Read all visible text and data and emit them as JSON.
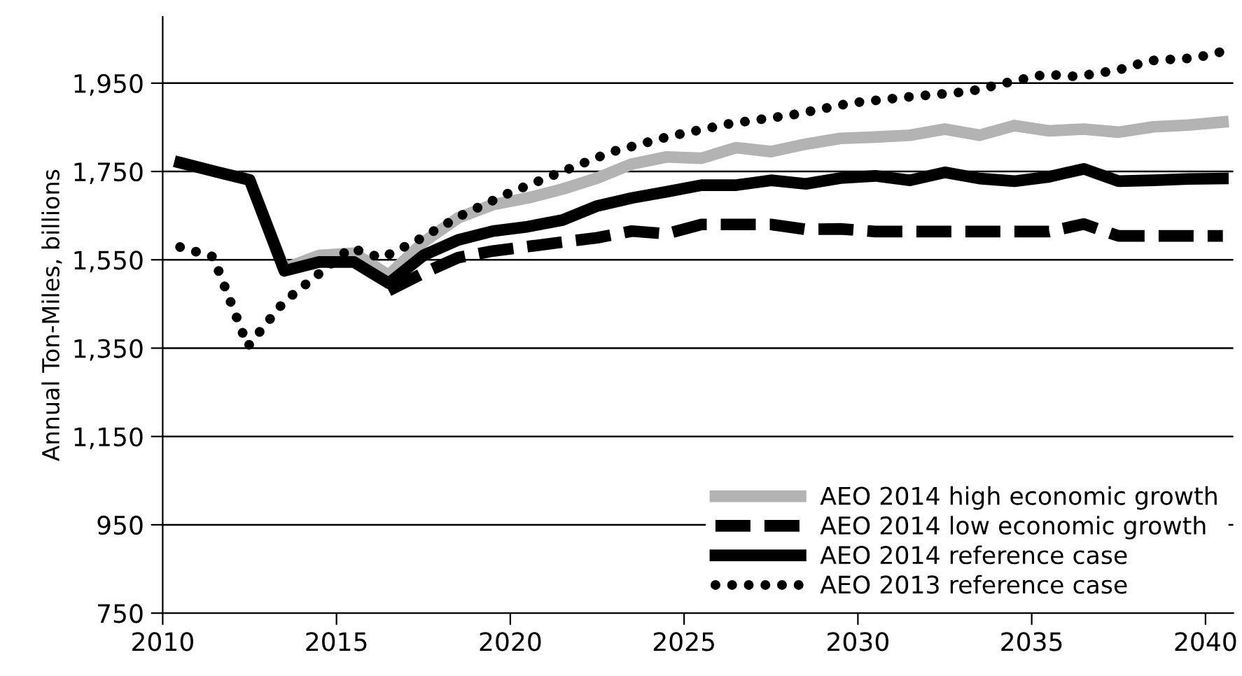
{
  "chart_data": {
    "type": "line",
    "ylabel": "Annual Ton-Miles, billions",
    "xlim": [
      2010,
      2040.8
    ],
    "xticks": [
      2010,
      2015,
      2020,
      2025,
      2030,
      2035,
      2040
    ],
    "ylim": [
      750,
      2100
    ],
    "yticks": [
      {
        "value": 750,
        "label": "750"
      },
      {
        "value": 950,
        "label": "950"
      },
      {
        "value": 1150,
        "label": "1,150"
      },
      {
        "value": 1350,
        "label": "1,350"
      },
      {
        "value": 1550,
        "label": "1,550"
      },
      {
        "value": 1750,
        "label": "1,750"
      },
      {
        "value": 1950,
        "label": "1,950"
      }
    ],
    "grid": "y",
    "legend": "bottom right",
    "marker": "none",
    "series": [
      {
        "name": "AEO 2014 high economic growth",
        "color": "#b3b3b3",
        "line_style": "solid",
        "x": [
          2010.5,
          2011.5,
          2012.5,
          2013.5,
          2014.5,
          2015.5,
          2016.5,
          2017.5,
          2018.5,
          2019.5,
          2020.5,
          2021.5,
          2022.5,
          2023.5,
          2024.5,
          2025.5,
          2026.5,
          2027.5,
          2028.5,
          2029.5,
          2030.5,
          2031.5,
          2032.5,
          2033.5,
          2034.5,
          2035.5,
          2036.5,
          2037.5,
          2038.5,
          2039.5,
          2040.5
        ],
        "values": [
          1770,
          1750,
          1731,
          1530,
          1560,
          1565,
          1515,
          1590,
          1645,
          1675,
          1690,
          1710,
          1735,
          1767,
          1783,
          1780,
          1804,
          1795,
          1812,
          1825,
          1828,
          1832,
          1846,
          1832,
          1854,
          1842,
          1846,
          1839,
          1851,
          1855,
          1862
        ]
      },
      {
        "name": "AEO 2014 low economic growth",
        "color": "#000000",
        "line_style": "dashed",
        "x": [
          2016.5,
          2017.5,
          2018.5,
          2019.5,
          2020.5,
          2021.5,
          2022.5,
          2023.5,
          2024.5,
          2025.5,
          2026.5,
          2027.5,
          2028.5,
          2029.5,
          2030.5,
          2031.5,
          2032.5,
          2033.5,
          2034.5,
          2035.5,
          2036.5,
          2037.5,
          2038.5,
          2039.5,
          2040.5
        ],
        "values": [
          1480,
          1520,
          1555,
          1570,
          1580,
          1590,
          1600,
          1615,
          1609,
          1630,
          1630,
          1630,
          1619,
          1620,
          1614,
          1614,
          1614,
          1614,
          1614,
          1614,
          1631,
          1604,
          1604,
          1604,
          1604
        ]
      },
      {
        "name": "AEO 2014 reference case",
        "color": "#000000",
        "line_style": "solid",
        "x": [
          2010.5,
          2011.5,
          2012.5,
          2013.5,
          2014.5,
          2015.5,
          2016.5,
          2017.5,
          2018.5,
          2019.5,
          2020.5,
          2021.5,
          2022.5,
          2023.5,
          2024.5,
          2025.5,
          2026.5,
          2027.5,
          2028.5,
          2029.5,
          2030.5,
          2031.5,
          2032.5,
          2033.5,
          2034.5,
          2035.5,
          2036.5,
          2037.5,
          2038.5,
          2039.5,
          2040.5
        ],
        "values": [
          1770,
          1750,
          1731,
          1525,
          1545,
          1545,
          1497,
          1560,
          1595,
          1615,
          1625,
          1640,
          1672,
          1690,
          1704,
          1719,
          1719,
          1730,
          1722,
          1735,
          1740,
          1730,
          1748,
          1734,
          1728,
          1738,
          1756,
          1728,
          1730,
          1733,
          1734
        ]
      },
      {
        "name": "AEO 2013 reference case",
        "color": "#000000",
        "line_style": "dotted",
        "x": [
          2010.5,
          2011.45,
          2012.45,
          2013.5,
          2014.6,
          2015.4,
          2016.3,
          2017.3,
          2018.6,
          2019.9,
          2021.4,
          2022.9,
          2024.6,
          2026.3,
          2028.1,
          2029.8,
          2031.6,
          2033.2,
          2034.5,
          2035.4,
          2036.3,
          2037.5,
          2038.4,
          2039.7,
          2040.4
        ],
        "values": [
          1579,
          1557,
          1354,
          1456,
          1525,
          1577,
          1554,
          1593,
          1651,
          1699,
          1747,
          1794,
          1830,
          1858,
          1878,
          1905,
          1920,
          1931,
          1955,
          1970,
          1965,
          1980,
          2001,
          2007,
          2020
        ]
      }
    ]
  }
}
